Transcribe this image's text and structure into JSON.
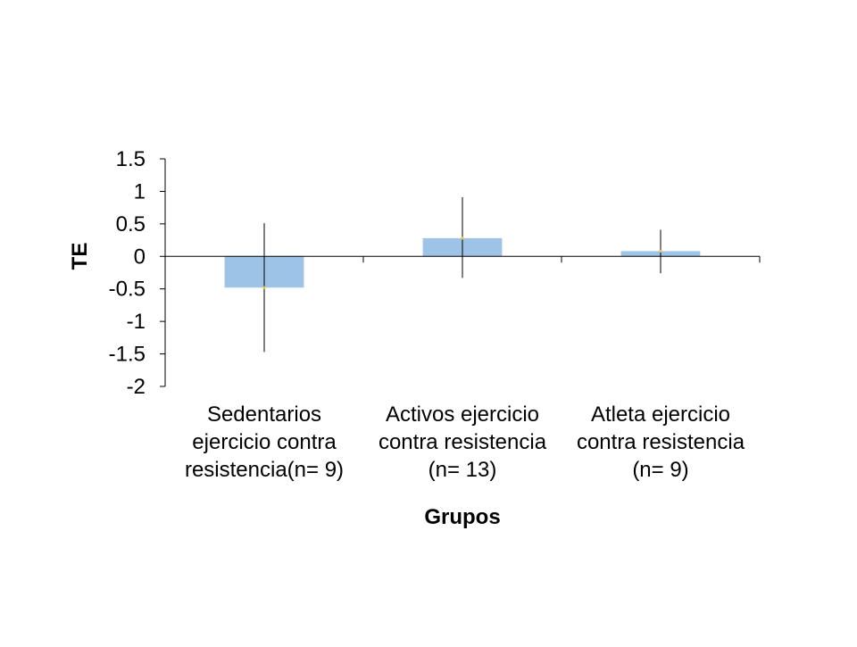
{
  "chart_data": {
    "type": "bar",
    "title": "",
    "xlabel": "Grupos",
    "ylabel": "TE",
    "ylim": [
      -2,
      1.5
    ],
    "yticks": [
      1.5,
      1,
      0.5,
      0,
      -0.5,
      -1,
      -1.5,
      -2
    ],
    "ytick_labels": [
      "1.5",
      "1",
      "0.5",
      "0",
      "-0.5",
      "-1",
      "-1.5",
      "-2"
    ],
    "categories": [
      [
        "Sedentarios",
        "ejercicio contra",
        "resistencia(n= 9)"
      ],
      [
        "Activos ejercicio",
        "contra resistencia",
        "(n= 13)"
      ],
      [
        "Atleta ejercicio",
        "contra resistencia",
        "(n= 9)"
      ]
    ],
    "values": [
      -0.48,
      0.28,
      0.08
    ],
    "error_bars": [
      {
        "low": -1.47,
        "high": 0.51
      },
      {
        "low": -0.33,
        "high": 0.91
      },
      {
        "low": -0.26,
        "high": 0.41
      }
    ],
    "bar_color": "#9DC3E6",
    "marker_color": "#E8C24A",
    "grid": false
  }
}
